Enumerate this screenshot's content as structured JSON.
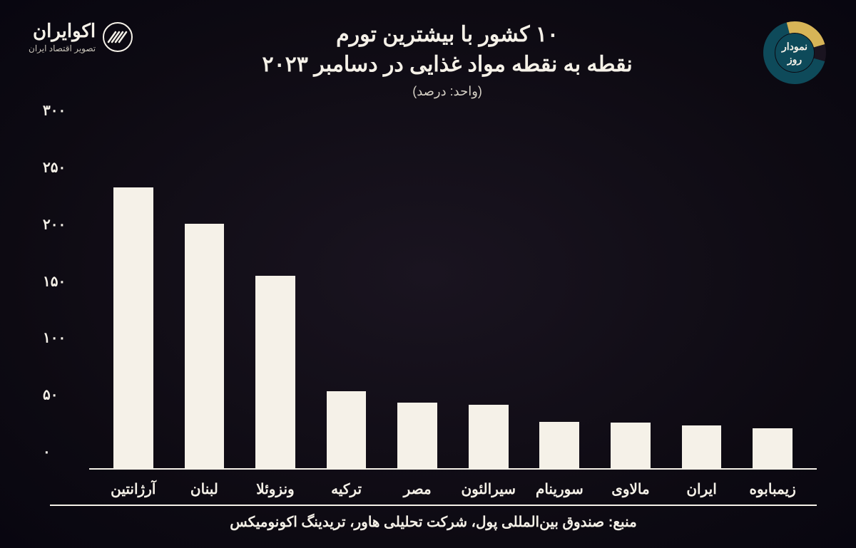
{
  "logo": {
    "name": "اکوایران",
    "sub": "تصویر اقتصاد ایران",
    "stroke_color": "#f5f1e8"
  },
  "badge": {
    "line1": "نمودار",
    "line2": "روز",
    "colors": {
      "seg1": "#0e4a5a",
      "seg2": "#d7b457",
      "seg3": "#1a1420"
    }
  },
  "title": {
    "line1": "۱۰ کشور با بیشترین تورم",
    "line2": "نقطه به نقطه مواد غذایی در دسامبر ۲۰۲۳",
    "unit": "(واحد: درصد)"
  },
  "chart": {
    "type": "bar",
    "bar_color": "#f5f1e8",
    "axis_color": "#f5f1e8",
    "background": "transparent",
    "label_fontsize": 20,
    "tick_fontsize": 20,
    "bar_width_ratio": 0.56,
    "ylim": [
      0,
      300
    ],
    "yticks": [
      {
        "value": 0,
        "label": "۰"
      },
      {
        "value": 50,
        "label": "۵۰"
      },
      {
        "value": 100,
        "label": "۱۰۰"
      },
      {
        "value": 150,
        "label": "۱۵۰"
      },
      {
        "value": 200,
        "label": "۲۰۰"
      },
      {
        "value": 250,
        "label": "۲۵۰"
      },
      {
        "value": 300,
        "label": "۳۰۰"
      }
    ],
    "categories": [
      {
        "label": "آرژانتین",
        "value": 248
      },
      {
        "label": "لبنان",
        "value": 216
      },
      {
        "label": "ونزوئلا",
        "value": 170
      },
      {
        "label": "ترکیه",
        "value": 68
      },
      {
        "label": "مصر",
        "value": 58
      },
      {
        "label": "سیرالئون",
        "value": 56
      },
      {
        "label": "سورینام",
        "value": 41
      },
      {
        "label": "مالاوی",
        "value": 40
      },
      {
        "label": "ایران",
        "value": 38
      },
      {
        "label": "زیمبابوه",
        "value": 35
      }
    ]
  },
  "footer": {
    "source": "منبع: صندوق بین‌المللی پول، شرکت تحلیلی هاور، تریدینگ اکونومیکس"
  }
}
